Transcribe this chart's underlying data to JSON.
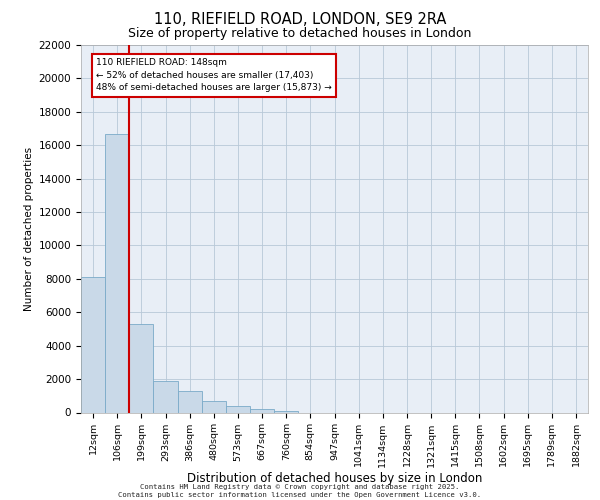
{
  "title1": "110, RIEFIELD ROAD, LONDON, SE9 2RA",
  "title2": "Size of property relative to detached houses in London",
  "xlabel": "Distribution of detached houses by size in London",
  "ylabel": "Number of detached properties",
  "annotation_title": "110 RIEFIELD ROAD: 148sqm",
  "annotation_line1": "← 52% of detached houses are smaller (17,403)",
  "annotation_line2": "48% of semi-detached houses are larger (15,873) →",
  "footer1": "Contains HM Land Registry data © Crown copyright and database right 2025.",
  "footer2": "Contains public sector information licensed under the Open Government Licence v3.0.",
  "bar_color": "#c9d9e8",
  "bar_edge_color": "#7aaac8",
  "red_line_color": "#cc0000",
  "annotation_box_color": "#cc0000",
  "grid_color": "#b8c8d8",
  "background_color": "#e8eef6",
  "categories": [
    "12sqm",
    "106sqm",
    "199sqm",
    "293sqm",
    "386sqm",
    "480sqm",
    "573sqm",
    "667sqm",
    "760sqm",
    "854sqm",
    "947sqm",
    "1041sqm",
    "1134sqm",
    "1228sqm",
    "1321sqm",
    "1415sqm",
    "1508sqm",
    "1602sqm",
    "1695sqm",
    "1789sqm",
    "1882sqm"
  ],
  "values": [
    8100,
    16700,
    5300,
    1900,
    1300,
    700,
    400,
    200,
    100,
    0,
    0,
    0,
    0,
    0,
    0,
    0,
    0,
    0,
    0,
    0,
    0
  ],
  "ylim": [
    0,
    22000
  ],
  "yticks": [
    0,
    2000,
    4000,
    6000,
    8000,
    10000,
    12000,
    14000,
    16000,
    18000,
    20000,
    22000
  ],
  "red_line_x": 1.48
}
